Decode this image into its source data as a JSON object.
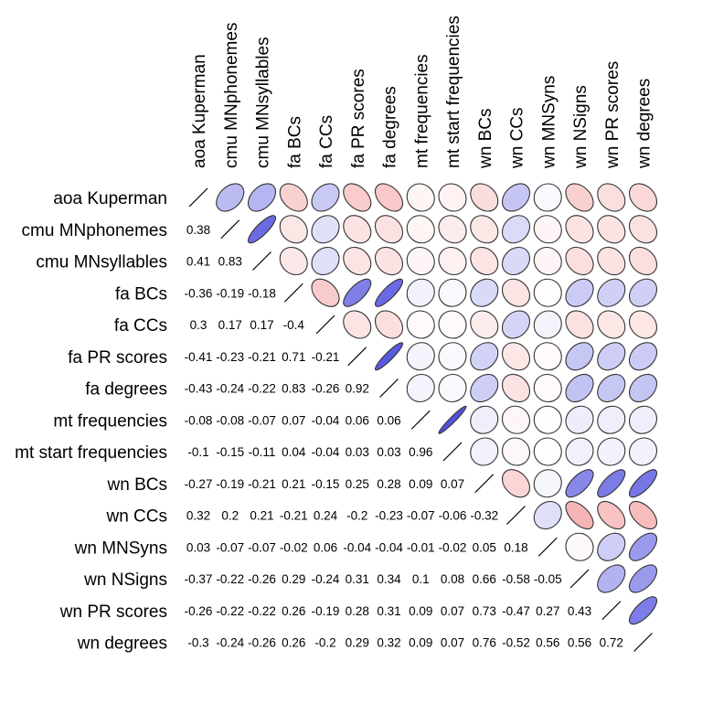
{
  "chart_data": {
    "type": "heatmap",
    "style": "correlation matrix: lower triangle numeric values, upper triangle ellipses shaded by correlation",
    "variables": [
      "aoa Kuperman",
      "cmu MNphonemes",
      "cmu MNsyllables",
      "fa BCs",
      "fa CCs",
      "fa PR scores",
      "fa degrees",
      "mt frequencies",
      "mt start frequencies",
      "wn BCs",
      "wn CCs",
      "wn MNSyns",
      "wn NSigns",
      "wn PR scores",
      "wn degrees"
    ],
    "lower_triangle": [
      [],
      [
        "0.38"
      ],
      [
        "0.41",
        "0.83"
      ],
      [
        "-0.36",
        "-0.19",
        "-0.18"
      ],
      [
        "0.3",
        "0.17",
        "0.17",
        "-0.4"
      ],
      [
        "-0.41",
        "-0.23",
        "-0.21",
        "0.71",
        "-0.21"
      ],
      [
        "-0.43",
        "-0.24",
        "-0.22",
        "0.83",
        "-0.26",
        "0.92"
      ],
      [
        "-0.08",
        "-0.08",
        "-0.07",
        "0.07",
        "-0.04",
        "0.06",
        "0.06"
      ],
      [
        "-0.1",
        "-0.15",
        "-0.11",
        "0.04",
        "-0.04",
        "0.03",
        "0.03",
        "0.96"
      ],
      [
        "-0.27",
        "-0.19",
        "-0.21",
        "0.21",
        "-0.15",
        "0.25",
        "0.28",
        "0.09",
        "0.07"
      ],
      [
        "0.32",
        "0.2",
        "0.21",
        "-0.21",
        "0.24",
        "-0.2",
        "-0.23",
        "-0.07",
        "-0.06",
        "-0.32"
      ],
      [
        "0.03",
        "-0.07",
        "-0.07",
        "-0.02",
        "0.06",
        "-0.04",
        "-0.04",
        "-0.01",
        "-0.02",
        "0.05",
        "0.18"
      ],
      [
        "-0.37",
        "-0.22",
        "-0.26",
        "0.29",
        "-0.24",
        "0.31",
        "0.34",
        "0.1",
        "0.08",
        "0.66",
        "-0.58",
        "-0.05"
      ],
      [
        "-0.26",
        "-0.22",
        "-0.22",
        "0.26",
        "-0.19",
        "0.28",
        "0.31",
        "0.09",
        "0.07",
        "0.73",
        "-0.47",
        "0.27",
        "0.43"
      ],
      [
        "-0.3",
        "-0.24",
        "-0.26",
        "0.26",
        "-0.2",
        "0.29",
        "0.32",
        "0.09",
        "0.07",
        "0.76",
        "-0.52",
        "0.56",
        "0.56",
        "0.72"
      ]
    ],
    "color_scale": {
      "positive": "#4b4bdd",
      "negative": "#f08080",
      "zero": "#ffffff",
      "outline": "#333333"
    },
    "diagonal": "line",
    "legend": "none"
  }
}
